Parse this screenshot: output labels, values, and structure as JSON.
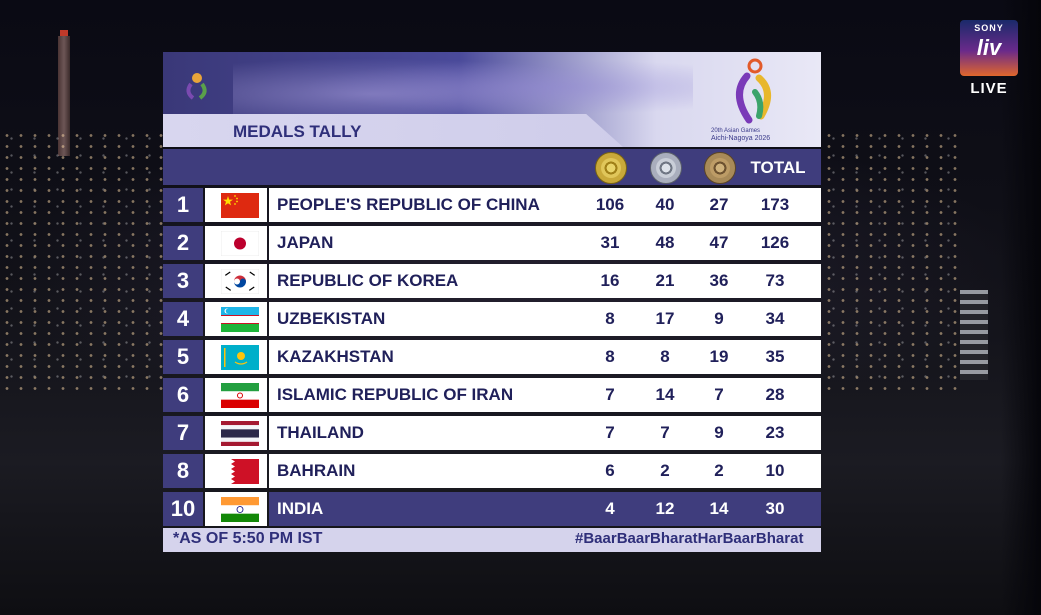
{
  "broadcaster": {
    "brand": "SONY",
    "logo_text": "liv",
    "live_label": "LIVE"
  },
  "games_logo": {
    "line1": "20th Asian Games",
    "line2": "Aichi-Nagoya 2026"
  },
  "title": "MEDALS TALLY",
  "columns": {
    "gold": "gold-medal-icon",
    "silver": "silver-medal-icon",
    "bronze": "bronze-medal-icon",
    "total_label": "TOTAL"
  },
  "rows": [
    {
      "rank": "1",
      "country": "PEOPLE'S REPUBLIC OF CHINA",
      "flag": "china-flag",
      "gold": "106",
      "silver": "40",
      "bronze": "27",
      "total": "173"
    },
    {
      "rank": "2",
      "country": "JAPAN",
      "flag": "japan-flag",
      "gold": "31",
      "silver": "48",
      "bronze": "47",
      "total": "126"
    },
    {
      "rank": "3",
      "country": "REPUBLIC OF KOREA",
      "flag": "korea-flag",
      "gold": "16",
      "silver": "21",
      "bronze": "36",
      "total": "73"
    },
    {
      "rank": "4",
      "country": "UZBEKISTAN",
      "flag": "uzbekistan-flag",
      "gold": "8",
      "silver": "17",
      "bronze": "9",
      "total": "34"
    },
    {
      "rank": "5",
      "country": "KAZAKHSTAN",
      "flag": "kazakhstan-flag",
      "gold": "8",
      "silver": "8",
      "bronze": "19",
      "total": "35"
    },
    {
      "rank": "6",
      "country": "ISLAMIC REPUBLIC OF IRAN",
      "flag": "iran-flag",
      "gold": "7",
      "silver": "14",
      "bronze": "7",
      "total": "28"
    },
    {
      "rank": "7",
      "country": "THAILAND",
      "flag": "thailand-flag",
      "gold": "7",
      "silver": "7",
      "bronze": "9",
      "total": "23"
    },
    {
      "rank": "8",
      "country": "BAHRAIN",
      "flag": "bahrain-flag",
      "gold": "6",
      "silver": "2",
      "bronze": "2",
      "total": "10"
    },
    {
      "rank": "10",
      "country": "INDIA",
      "flag": "india-flag",
      "gold": "4",
      "silver": "12",
      "bronze": "14",
      "total": "30"
    }
  ],
  "footer": {
    "timestamp": "*AS OF 5:50 PM IST",
    "hashtag": "#BaarBaarBharatHarBaarBharat"
  },
  "colors": {
    "panel_navy": "#3f3d7d",
    "footer_lavender": "#d5d3ec",
    "text_navy": "#20205a"
  }
}
